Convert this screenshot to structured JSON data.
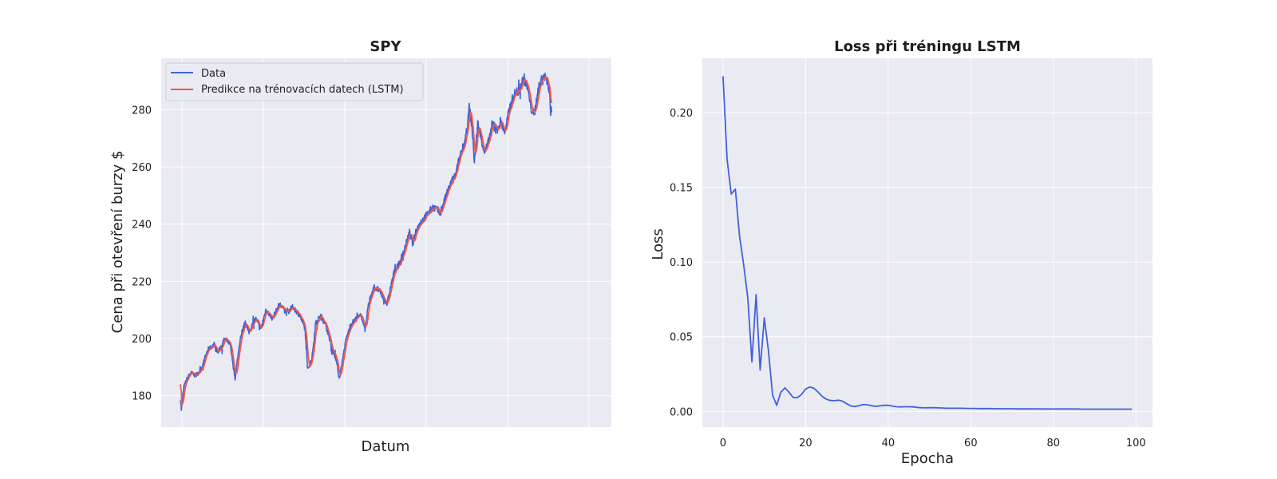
{
  "chart_data": [
    {
      "type": "line",
      "title": "SPY",
      "xlabel": "Datum",
      "ylabel": "Cena při otevření burzy $",
      "ylim": [
        169,
        298
      ],
      "y_ticks": [
        180,
        200,
        220,
        240,
        260,
        280
      ],
      "x_ticks_labels": [],
      "grid": true,
      "legend": "top-left",
      "x_index_range": [
        0,
        1200
      ],
      "keypoints": [
        [
          0,
          179
        ],
        [
          3,
          175
        ],
        [
          10,
          183
        ],
        [
          20,
          186
        ],
        [
          30,
          188
        ],
        [
          45,
          187
        ],
        [
          60,
          189
        ],
        [
          80,
          196
        ],
        [
          100,
          198
        ],
        [
          110,
          195
        ],
        [
          130,
          200
        ],
        [
          145,
          198
        ],
        [
          160,
          186
        ],
        [
          175,
          200
        ],
        [
          190,
          206
        ],
        [
          200,
          202
        ],
        [
          220,
          207
        ],
        [
          235,
          203
        ],
        [
          250,
          210
        ],
        [
          270,
          207
        ],
        [
          290,
          212
        ],
        [
          310,
          209
        ],
        [
          330,
          211
        ],
        [
          350,
          208
        ],
        [
          365,
          203
        ],
        [
          372,
          189
        ],
        [
          385,
          193
        ],
        [
          395,
          205
        ],
        [
          410,
          208
        ],
        [
          425,
          205
        ],
        [
          445,
          196
        ],
        [
          455,
          193
        ],
        [
          465,
          186
        ],
        [
          475,
          193
        ],
        [
          485,
          200
        ],
        [
          500,
          205
        ],
        [
          515,
          207
        ],
        [
          530,
          208
        ],
        [
          540,
          203
        ],
        [
          550,
          212
        ],
        [
          565,
          218
        ],
        [
          580,
          217
        ],
        [
          595,
          214
        ],
        [
          605,
          212
        ],
        [
          615,
          218
        ],
        [
          625,
          223
        ],
        [
          645,
          227
        ],
        [
          660,
          233
        ],
        [
          670,
          237
        ],
        [
          680,
          233
        ],
        [
          690,
          238
        ],
        [
          705,
          241
        ],
        [
          720,
          243
        ],
        [
          740,
          246
        ],
        [
          760,
          244
        ],
        [
          775,
          249
        ],
        [
          790,
          254
        ],
        [
          805,
          257
        ],
        [
          820,
          265
        ],
        [
          830,
          268
        ],
        [
          840,
          274
        ],
        [
          845,
          281
        ],
        [
          852,
          275
        ],
        [
          860,
          262
        ],
        [
          870,
          275
        ],
        [
          880,
          270
        ],
        [
          890,
          265
        ],
        [
          900,
          268
        ],
        [
          912,
          275
        ],
        [
          925,
          273
        ],
        [
          937,
          276
        ],
        [
          950,
          272
        ],
        [
          962,
          280
        ],
        [
          975,
          285
        ],
        [
          990,
          287
        ],
        [
          1005,
          291
        ],
        [
          1015,
          288
        ],
        [
          1025,
          281
        ],
        [
          1035,
          278
        ],
        [
          1045,
          286
        ],
        [
          1060,
          292
        ],
        [
          1070,
          291
        ],
        [
          1080,
          287
        ],
        [
          1083,
          278
        ],
        [
          1086,
          280
        ]
      ],
      "series": [
        {
          "name": "Data",
          "color": "#4062d9"
        },
        {
          "name": "Predikce na trénovacích datech (LSTM)",
          "color": "#f25a47"
        }
      ]
    },
    {
      "type": "line",
      "title": "Loss při tréningu LSTM",
      "xlabel": "Epocha",
      "ylabel": "Loss",
      "xlim": [
        -5,
        104
      ],
      "ylim": [
        -0.0105,
        0.2363
      ],
      "x_ticks": [
        0,
        20,
        40,
        60,
        80,
        100
      ],
      "y_ticks": [
        "0.00",
        "0.05",
        "0.10",
        "0.15",
        "0.20"
      ],
      "grid": true,
      "series": [
        {
          "name": "Loss",
          "color": "#4062d9",
          "x_start": 0,
          "values": [
            0.2243,
            0.1687,
            0.1455,
            0.1487,
            0.1172,
            0.0985,
            0.0762,
            0.0331,
            0.0782,
            0.0277,
            0.0626,
            0.0406,
            0.0109,
            0.0041,
            0.0128,
            0.0158,
            0.0128,
            0.0093,
            0.0092,
            0.0113,
            0.015,
            0.0163,
            0.0155,
            0.013,
            0.0101,
            0.0082,
            0.0073,
            0.0072,
            0.0075,
            0.0068,
            0.0051,
            0.0036,
            0.0033,
            0.0039,
            0.0046,
            0.0044,
            0.0038,
            0.0034,
            0.0037,
            0.0041,
            0.0041,
            0.0036,
            0.0031,
            0.003,
            0.0031,
            0.0031,
            0.003,
            0.0027,
            0.0025,
            0.0024,
            0.0025,
            0.0025,
            0.0024,
            0.0023,
            0.0021,
            0.0021,
            0.0021,
            0.0021,
            0.0021,
            0.002,
            0.002,
            0.002,
            0.0019,
            0.0019,
            0.0019,
            0.0019,
            0.0018,
            0.0018,
            0.0018,
            0.0018,
            0.0018,
            0.0017,
            0.0017,
            0.0017,
            0.0017,
            0.0017,
            0.0017,
            0.0016,
            0.0016,
            0.0016,
            0.0016,
            0.0016,
            0.0016,
            0.0016,
            0.0016,
            0.0016,
            0.0016,
            0.0015,
            0.0015,
            0.0015,
            0.0015,
            0.0015,
            0.0015,
            0.0015,
            0.0015,
            0.0015,
            0.0015,
            0.0015,
            0.0015,
            0.0015
          ]
        }
      ]
    }
  ]
}
